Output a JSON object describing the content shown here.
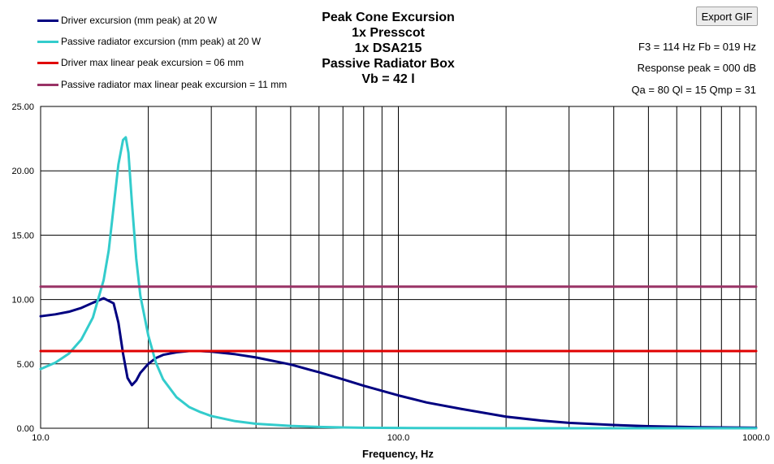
{
  "legend": {
    "items": [
      {
        "label": "Driver excursion (mm peak) at 20 W",
        "color": "#000080"
      },
      {
        "label": "Passive radiator excursion (mm peak) at 20 W",
        "color": "#33CCCC"
      },
      {
        "label": "Driver max linear peak excursion = 06 mm",
        "color": "#E00000"
      },
      {
        "label": "Passive radiator max linear peak excursion = 11 mm",
        "color": "#993366"
      }
    ]
  },
  "title": {
    "lines": [
      "Peak Cone Excursion",
      "1x Presscot",
      "1x DSA215",
      "Passive Radiator Box",
      "Vb = 42 l"
    ]
  },
  "toolbar": {
    "export_label": "Export GIF"
  },
  "info": {
    "f3_fb": "F3 = 114 Hz  Fb = 019 Hz",
    "response_peak": "Response peak = 000 dB",
    "q_values": "Qa = 80  Ql = 15  Qmp = 31"
  },
  "chart_data": {
    "type": "line",
    "xlabel": "Frequency, Hz",
    "ylabel": "",
    "xscale": "log",
    "xlim": [
      10,
      1000
    ],
    "ylim": [
      0,
      25
    ],
    "grid": true,
    "legend_position": "top-left",
    "x_tick_labels": [
      "10.0",
      "100.0",
      "1000.0"
    ],
    "y_tick_labels": [
      "0.00",
      "5.00",
      "10.00",
      "15.00",
      "20.00",
      "25.00"
    ],
    "y_ticks": [
      0,
      5,
      10,
      15,
      20,
      25
    ],
    "x_ticks": [
      10,
      100,
      1000
    ],
    "series": [
      {
        "name": "Driver excursion (mm peak) at 20 W",
        "color": "#000080",
        "x": [
          10,
          11,
          12,
          13,
          14,
          15,
          16,
          16.5,
          17,
          17.5,
          18,
          18.5,
          19,
          20,
          21,
          22,
          24,
          26,
          28,
          30,
          35,
          40,
          50,
          60,
          70,
          80,
          100,
          120,
          150,
          200,
          250,
          300,
          400,
          500,
          700,
          1000
        ],
        "y": [
          8.7,
          8.85,
          9.05,
          9.35,
          9.75,
          10.1,
          9.7,
          8.2,
          5.8,
          3.9,
          3.35,
          3.7,
          4.3,
          5.0,
          5.45,
          5.7,
          5.9,
          6.0,
          6.0,
          5.95,
          5.75,
          5.5,
          4.95,
          4.35,
          3.8,
          3.3,
          2.55,
          2.0,
          1.5,
          0.9,
          0.6,
          0.42,
          0.25,
          0.16,
          0.08,
          0.04
        ]
      },
      {
        "name": "Passive radiator excursion (mm peak) at 20 W",
        "color": "#33CCCC",
        "x": [
          10,
          11,
          12,
          13,
          14,
          15,
          15.5,
          16,
          16.5,
          17,
          17.3,
          17.6,
          18,
          18.5,
          19,
          20,
          21,
          22,
          24,
          26,
          28,
          30,
          35,
          40,
          50,
          60,
          70,
          80,
          100,
          150,
          200,
          300,
          500,
          1000
        ],
        "y": [
          4.6,
          5.1,
          5.8,
          6.9,
          8.6,
          11.5,
          13.8,
          17.2,
          20.5,
          22.4,
          22.6,
          21.4,
          17.5,
          13.2,
          10.3,
          7.2,
          5.1,
          3.8,
          2.4,
          1.65,
          1.25,
          0.95,
          0.55,
          0.35,
          0.18,
          0.1,
          0.06,
          0.04,
          0.02,
          0.01,
          0.0,
          0.0,
          0.0,
          0.0
        ]
      },
      {
        "name": "Driver max linear peak excursion = 06 mm",
        "color": "#E00000",
        "x": [
          10,
          1000
        ],
        "y": [
          6,
          6
        ]
      },
      {
        "name": "Passive radiator max linear peak excursion = 11 mm",
        "color": "#993366",
        "x": [
          10,
          1000
        ],
        "y": [
          11,
          11
        ]
      }
    ]
  }
}
